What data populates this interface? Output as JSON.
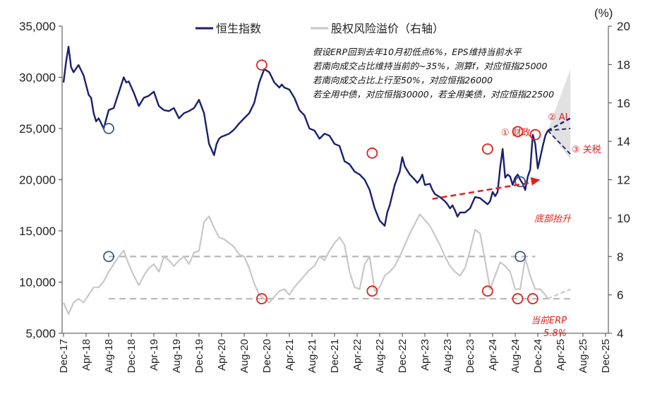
{
  "chart_data": {
    "type": "line",
    "unit_right": "(%)",
    "x_ticks": [
      "Dec-17",
      "Apr-18",
      "Aug-18",
      "Dec-18",
      "Apr-19",
      "Aug-19",
      "Dec-19",
      "Apr-20",
      "Aug-20",
      "Dec-20",
      "Apr-21",
      "Aug-21",
      "Dec-21",
      "Apr-22",
      "Aug-22",
      "Dec-22",
      "Apr-23",
      "Aug-23",
      "Dec-23",
      "Apr-24",
      "Aug-24",
      "Dec-24",
      "Apr-25",
      "Aug-25",
      "Dec-25"
    ],
    "y_left": {
      "min": 5000,
      "max": 35000,
      "ticks": [
        "5,000",
        "10,000",
        "15,000",
        "20,000",
        "25,000",
        "30,000",
        "35,000"
      ]
    },
    "y_right": {
      "min": 4,
      "max": 20,
      "ticks": [
        "4",
        "6",
        "8",
        "10",
        "12",
        "14",
        "16",
        "18",
        "20"
      ]
    },
    "series": [
      {
        "name": "恒生指数",
        "axis": "left",
        "color": "#1a1f6e",
        "x": [
          0,
          1,
          2,
          3,
          4,
          6,
          8,
          10,
          11,
          12,
          13,
          14,
          16,
          18,
          20,
          22,
          24,
          25,
          26,
          28,
          30,
          32,
          34,
          36,
          38,
          40,
          42,
          44,
          46,
          48,
          50,
          52,
          54,
          56,
          58,
          60,
          61,
          62,
          63,
          64,
          66,
          68,
          70,
          72,
          74,
          76,
          78,
          80,
          82,
          84,
          86,
          87,
          88,
          90,
          92,
          94,
          96,
          98,
          100,
          102,
          104,
          106,
          108,
          110,
          112,
          114,
          116,
          118,
          120,
          122,
          124,
          126,
          128,
          129,
          130,
          132,
          134,
          135,
          136,
          138,
          140,
          141,
          142,
          143,
          144,
          146,
          147,
          148,
          150,
          152,
          153,
          154,
          155,
          156,
          157,
          158,
          160,
          162,
          164,
          166,
          168,
          169,
          170,
          171,
          172,
          173,
          174,
          175,
          176,
          177,
          178,
          179,
          180,
          181,
          182,
          183,
          184,
          185,
          186,
          187,
          188,
          189,
          190,
          191,
          192,
          193
        ],
        "values": [
          29500,
          31500,
          33000,
          31000,
          30500,
          31200,
          30200,
          28300,
          28000,
          26500,
          25700,
          26000,
          25000,
          26800,
          27000,
          28500,
          30000,
          29500,
          29600,
          28500,
          27200,
          28000,
          28200,
          28600,
          27200,
          26800,
          26700,
          27000,
          26000,
          26500,
          26700,
          27000,
          27800,
          26500,
          23500,
          22400,
          23500,
          24000,
          24200,
          24300,
          24500,
          24900,
          25500,
          26000,
          26500,
          27500,
          29500,
          30800,
          30500,
          29500,
          29000,
          29300,
          29000,
          28800,
          28000,
          26800,
          26300,
          25000,
          24800,
          24000,
          24500,
          24300,
          23500,
          23300,
          21800,
          21500,
          20800,
          20500,
          20000,
          19000,
          17200,
          16000,
          15500,
          16800,
          17500,
          19500,
          20800,
          22200,
          21300,
          20500,
          20000,
          19700,
          20000,
          20500,
          19500,
          19600,
          19000,
          18600,
          18300,
          17900,
          17600,
          17200,
          17500,
          17000,
          16400,
          16800,
          16800,
          17200,
          18300,
          18200,
          17800,
          17600,
          17900,
          18800,
          18400,
          18800,
          21200,
          23000,
          20200,
          20500,
          20300,
          19500,
          20200,
          20500,
          20000,
          19600,
          19000,
          20300,
          21000,
          24400,
          23500,
          21100,
          22200,
          23300,
          24300,
          24800
        ]
      },
      {
        "name": "恒生指数 情景",
        "axis": "left",
        "color": "#1a1f6e",
        "dashed": true,
        "x": [
          193,
          202
        ],
        "values": [
          24800,
          26000
        ]
      },
      {
        "name": "股权风险溢价（右轴）",
        "axis": "right",
        "color": "#c8c8c8",
        "x": [
          0,
          2,
          4,
          6,
          8,
          10,
          12,
          14,
          16,
          18,
          20,
          22,
          24,
          26,
          28,
          30,
          32,
          34,
          36,
          38,
          40,
          42,
          44,
          46,
          48,
          50,
          52,
          54,
          56,
          58,
          60,
          62,
          64,
          66,
          68,
          70,
          72,
          74,
          76,
          78,
          80,
          82,
          84,
          86,
          88,
          90,
          92,
          94,
          96,
          98,
          100,
          102,
          104,
          106,
          108,
          110,
          112,
          114,
          116,
          118,
          120,
          122,
          124,
          126,
          128,
          130,
          132,
          134,
          136,
          138,
          140,
          142,
          144,
          146,
          148,
          150,
          152,
          154,
          156,
          158,
          160,
          162,
          164,
          166,
          168,
          170,
          172,
          174,
          176,
          178,
          180,
          182,
          184,
          186,
          188,
          190,
          192,
          193
        ],
        "values": [
          5.6,
          5.0,
          5.6,
          5.8,
          5.6,
          6.0,
          6.4,
          6.4,
          6.7,
          7.2,
          7.6,
          8.0,
          8.3,
          7.6,
          7.0,
          6.5,
          7.0,
          7.4,
          7.6,
          7.2,
          8.0,
          7.8,
          7.5,
          7.8,
          8.0,
          7.6,
          8.2,
          8.3,
          9.8,
          10.1,
          9.5,
          9.0,
          8.9,
          8.7,
          8.5,
          8.1,
          8.0,
          7.4,
          6.6,
          6.0,
          5.8,
          5.6,
          5.9,
          6.2,
          6.3,
          6.0,
          6.4,
          6.7,
          7.0,
          7.3,
          7.5,
          8.0,
          7.8,
          8.3,
          8.7,
          9.0,
          8.6,
          7.2,
          6.4,
          6.3,
          7.6,
          8.0,
          6.2,
          6.4,
          7.0,
          7.2,
          7.5,
          8.0,
          8.6,
          9.2,
          9.7,
          10.2,
          9.9,
          9.6,
          9.1,
          8.6,
          8.0,
          7.5,
          7.2,
          7.0,
          7.4,
          8.3,
          9.4,
          9.2,
          7.8,
          6.3,
          7.0,
          7.7,
          7.5,
          7.2,
          6.3,
          6.3,
          7.9,
          7.0,
          6.3,
          6.3,
          6.0,
          5.8
        ]
      },
      {
        "name": "股权风险溢价 情景",
        "axis": "right",
        "color": "#c8c8c8",
        "dashed": true,
        "x": [
          193,
          202
        ],
        "values": [
          5.8,
          6.3
        ]
      }
    ],
    "scenario_fan": {
      "x_start": 193,
      "x_end": 202,
      "y_top": 30800,
      "y_bottom": 22000,
      "extra_dashes": [
        [
          193,
          24800,
          202,
          25000
        ],
        [
          193,
          24800,
          202,
          22500
        ]
      ]
    },
    "reference_lines": [
      {
        "axis": "right",
        "value": 8.0,
        "x_from": 18,
        "x_to": 188,
        "style": "dashed"
      },
      {
        "axis": "right",
        "value": 5.8,
        "x_from": 18,
        "x_to": 202,
        "style": "dashed"
      }
    ],
    "circles": [
      {
        "x": 18,
        "y": 25000,
        "axis": "left",
        "color": "#3a5a8a"
      },
      {
        "x": 18,
        "y": 8.0,
        "axis": "right",
        "color": "#3a5a8a"
      },
      {
        "x": 79,
        "y": 31200,
        "axis": "left",
        "color": "#e0201b"
      },
      {
        "x": 79,
        "y": 5.8,
        "axis": "right",
        "color": "#e0201b"
      },
      {
        "x": 123,
        "y": 22600,
        "axis": "left",
        "color": "#e0201b"
      },
      {
        "x": 123,
        "y": 6.2,
        "axis": "right",
        "color": "#e0201b"
      },
      {
        "x": 169,
        "y": 23000,
        "axis": "left",
        "color": "#e0201b"
      },
      {
        "x": 169,
        "y": 6.2,
        "axis": "right",
        "color": "#e0201b"
      },
      {
        "x": 181,
        "y": 24700,
        "axis": "left",
        "color": "#e0201b"
      },
      {
        "x": 182,
        "y": 19800,
        "axis": "left",
        "color": "#3a5a8a"
      },
      {
        "x": 182,
        "y": 8.0,
        "axis": "right",
        "color": "#3a5a8a"
      },
      {
        "x": 181,
        "y": 5.8,
        "axis": "right",
        "color": "#e0201b"
      },
      {
        "x": 187,
        "y": 5.8,
        "axis": "right",
        "color": "#e0201b"
      },
      {
        "x": 188,
        "y": 24400,
        "axis": "left",
        "color": "#e0201b"
      }
    ],
    "annotations": {
      "notes": [
        "假设ERP回到去年10月初低点6%，EPS维持当前水平",
        "若南向成交占比维持当前的~35%，测算f，对应恒指25000",
        "若南向成交占比上行至50%，对应恒指26000",
        "若全用中债，对应恒指30000，若全用美债，对应恒指22500"
      ],
      "event1": "① 财政",
      "event2": "② AI",
      "event3": "③ 关税",
      "trend": "底部抬升",
      "erp_label": "当前ERP",
      "erp_value": "5.8%"
    },
    "trend_arrow": {
      "from": [
        147,
        11
      ],
      "to": [
        190,
        12
      ]
    }
  }
}
